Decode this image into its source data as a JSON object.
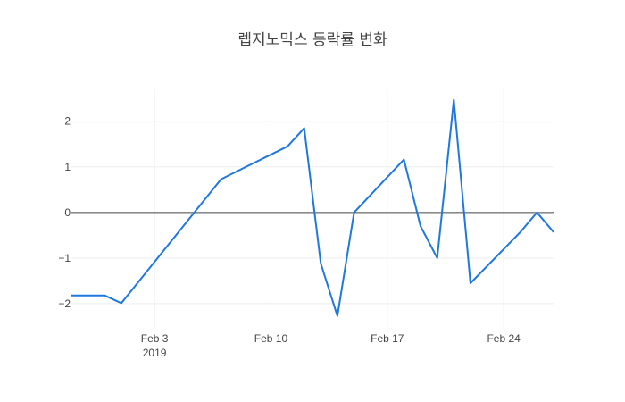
{
  "chart_data": {
    "type": "line",
    "title": "렙지노믹스 등락률 변화",
    "xlabel": "",
    "ylabel": "",
    "x_range": [
      "2019-01-29",
      "2019-02-27"
    ],
    "ylim": [
      -2.55,
      2.7
    ],
    "x_ticks": [
      {
        "date": "2019-02-03",
        "label": "Feb 3",
        "sublabel": "2019"
      },
      {
        "date": "2019-02-10",
        "label": "Feb 10",
        "sublabel": ""
      },
      {
        "date": "2019-02-17",
        "label": "Feb 17",
        "sublabel": ""
      },
      {
        "date": "2019-02-24",
        "label": "Feb 24",
        "sublabel": ""
      }
    ],
    "y_ticks": [
      {
        "value": 2,
        "label": "2"
      },
      {
        "value": 1,
        "label": "1"
      },
      {
        "value": 0,
        "label": "0"
      },
      {
        "value": -1,
        "label": "−1"
      },
      {
        "value": -2,
        "label": "−2"
      }
    ],
    "grid": true,
    "zero_line": true,
    "series": [
      {
        "color": "#1f77e0",
        "points": [
          {
            "x": "2019-01-29",
            "y": -1.82
          },
          {
            "x": "2019-01-31",
            "y": -1.82
          },
          {
            "x": "2019-02-01",
            "y": -1.99
          },
          {
            "x": "2019-02-07",
            "y": 0.73
          },
          {
            "x": "2019-02-08",
            "y": 0.91
          },
          {
            "x": "2019-02-11",
            "y": 1.45
          },
          {
            "x": "2019-02-12",
            "y": 1.85
          },
          {
            "x": "2019-02-13",
            "y": -1.12
          },
          {
            "x": "2019-02-14",
            "y": -2.27
          },
          {
            "x": "2019-02-15",
            "y": 0.0
          },
          {
            "x": "2019-02-18",
            "y": 1.16
          },
          {
            "x": "2019-02-19",
            "y": -0.3
          },
          {
            "x": "2019-02-20",
            "y": -1.0
          },
          {
            "x": "2019-02-21",
            "y": 2.47
          },
          {
            "x": "2019-02-22",
            "y": -1.55
          },
          {
            "x": "2019-02-25",
            "y": -0.43
          },
          {
            "x": "2019-02-26",
            "y": 0.0
          },
          {
            "x": "2019-02-27",
            "y": -0.43
          }
        ]
      }
    ]
  }
}
